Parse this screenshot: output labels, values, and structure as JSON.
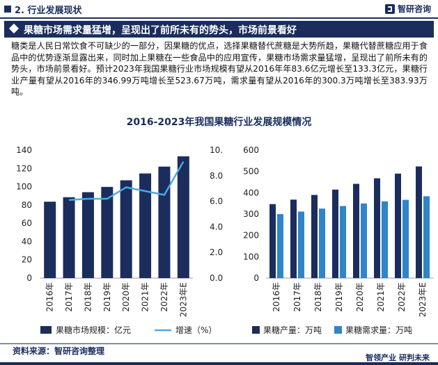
{
  "header": {
    "section": "2. 行业发展现状",
    "brand": "智研咨询"
  },
  "banner": {
    "title": "果糖市场需求量猛增，呈现出了前所未有的势头，市场前景看好"
  },
  "paragraph": "糖类是人民日常饮食不可缺少的一部分，因果糖的优点，选择果糖替代蔗糖是大势所趋，果糖代替蔗糖应用于食品中的优势逐渐显露出来，同时加上果糖在一些食品中的应用宣传，果糖市场需求量猛增，呈现出了前所未有的势头，市场前景看好。预计2023年我国果糖行业市场规模有望从2016年年83.6亿元增长至133.3亿元，果糖行业产量有望从2016年的346.99万吨增长至523.67万吨，需求量有望从2016年的300.3万吨增长至383.93万吨。",
  "figure_title": "2016-2023年我国果糖行业发展规模情况",
  "colors": {
    "navy": "#1a2d5c",
    "blue": "#2f85c8",
    "line": "#4aa9e8"
  },
  "chart_data": [
    {
      "type": "bar+line",
      "categories": [
        "2016年",
        "2017年",
        "2018年",
        "2019年",
        "2020年",
        "2021年",
        "2022年",
        "2023年E"
      ],
      "series": [
        {
          "name": "果糖市场规模：亿元",
          "kind": "bar",
          "axis": "left",
          "values": [
            83.6,
            88.5,
            94.0,
            99.8,
            107.0,
            114.5,
            122.0,
            133.3
          ]
        },
        {
          "name": "增速（%）",
          "kind": "line",
          "axis": "right",
          "values": [
            null,
            6.1,
            6.2,
            6.2,
            7.1,
            6.8,
            6.5,
            9.1
          ]
        }
      ],
      "left_axis": {
        "ticks": [
          "0",
          "20",
          "40",
          "60",
          "80",
          "100",
          "120",
          "140"
        ],
        "ylim": [
          0,
          140
        ]
      },
      "right_axis": {
        "ticks": [
          "0.0%",
          "2.0%",
          "4.0%",
          "6.0%",
          "8.0%",
          "10.0%"
        ],
        "ylim": [
          0,
          10
        ]
      },
      "legend": [
        "果糖市场规模：亿元",
        "增速（%）"
      ],
      "legend_position": "bottom"
    },
    {
      "type": "bar",
      "categories": [
        "2016年",
        "2017年",
        "2018年",
        "2019年",
        "2020年",
        "2021年",
        "2022年",
        "2023年E"
      ],
      "series": [
        {
          "name": "果糖产量：万吨",
          "values": [
            346.99,
            368,
            390,
            415,
            442,
            468,
            490,
            523.67
          ]
        },
        {
          "name": "果糖需求量：万吨",
          "values": [
            300.3,
            312,
            326,
            338,
            350,
            360,
            367,
            383.93
          ]
        }
      ],
      "axis": {
        "ticks": [
          "0",
          "100",
          "200",
          "300",
          "400",
          "500",
          "600"
        ],
        "ylim": [
          0,
          600
        ]
      },
      "legend": [
        "果糖产量：万吨",
        "果糖需求量：万吨"
      ],
      "legend_position": "bottom"
    }
  ],
  "footer": {
    "source": "资料来源：智研咨询整理",
    "slogan": "智领产业  研判未来"
  }
}
